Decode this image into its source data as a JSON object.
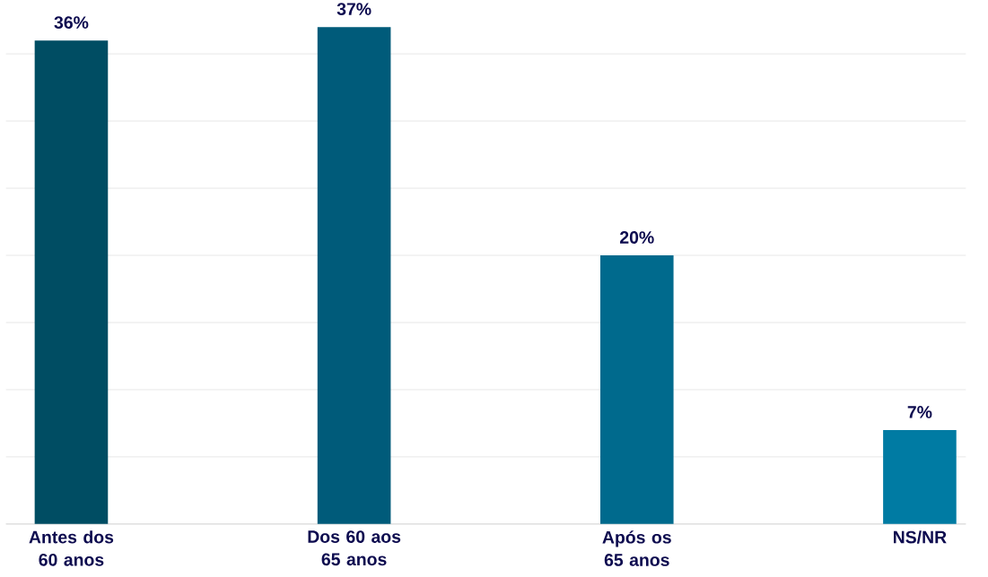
{
  "chart_data": {
    "type": "bar",
    "categories": [
      "Antes dos 60 anos",
      "Dos 60 aos 65 anos",
      "Após os 65 anos",
      "NS/NR"
    ],
    "values": [
      36,
      37,
      20,
      7
    ],
    "colors": [
      "#004d63",
      "#005b7a",
      "#006a8d",
      "#007ba3"
    ],
    "value_labels": [
      "36%",
      "37%",
      "20%",
      "7%"
    ],
    "yticks": [
      {
        "value": 0,
        "label": null
      },
      {
        "value": 5,
        "label": null
      },
      {
        "value": 10,
        "label": null
      },
      {
        "value": 15,
        "label": null
      },
      {
        "value": 20,
        "label": null
      },
      {
        "value": 25,
        "label": null
      },
      {
        "value": 30,
        "label": null
      },
      {
        "value": 35,
        "label": null
      }
    ],
    "grid": "y",
    "tick_labels": "x"
  }
}
